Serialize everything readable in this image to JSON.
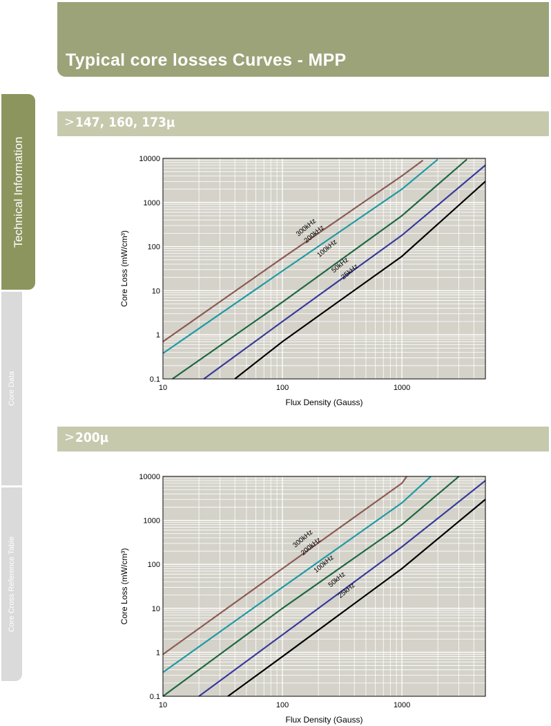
{
  "header": {
    "title": "Typical core losses Curves - MPP"
  },
  "side_tabs": [
    {
      "label": "Technical Information",
      "active": true
    },
    {
      "label": "Core Data",
      "active": false
    },
    {
      "label": "Core Cross Reference Table",
      "active": false
    }
  ],
  "sections": [
    {
      "marker": ">",
      "title": "147, 160, 173μ"
    },
    {
      "marker": ">",
      "title": "200μ"
    }
  ],
  "colors": {
    "header_bg": "#9ca379",
    "section_bg": "#c7c9ad",
    "plot_bg": "#d4d2c9",
    "grid": "#ffffff",
    "300kHz": "#8b5a55",
    "200kHz": "#1f9aa3",
    "100kHz": "#1f6842",
    "50kHz": "#363a9a",
    "25kHz": "#000000"
  },
  "chart_data": [
    {
      "type": "line",
      "title": "",
      "xlabel": "Flux Density (Gauss)",
      "ylabel": "Core Loss (mW/cm³)",
      "x_scale": "log",
      "y_scale": "log",
      "xlim": [
        10,
        5000
      ],
      "ylim": [
        0.1,
        10000
      ],
      "x_ticks": [
        "10",
        "100",
        "1000"
      ],
      "y_ticks": [
        "0.1",
        "1",
        "10",
        "100",
        "1000",
        "10000"
      ],
      "grid": true,
      "series": [
        {
          "name": "300kHz",
          "color": "#8b5a55",
          "x": [
            10,
            100,
            1000,
            1500
          ],
          "y": [
            0.7,
            55,
            4000,
            9000
          ]
        },
        {
          "name": "200kHz",
          "color": "#1f9aa3",
          "x": [
            10,
            100,
            1000,
            2000
          ],
          "y": [
            0.38,
            28,
            2000,
            9500
          ]
        },
        {
          "name": "100kHz",
          "color": "#1f6842",
          "x": [
            12,
            100,
            1000,
            3500
          ],
          "y": [
            0.1,
            5.5,
            500,
            9500
          ]
        },
        {
          "name": "50kHz",
          "color": "#363a9a",
          "x": [
            22,
            100,
            1000,
            5000
          ],
          "y": [
            0.1,
            2,
            180,
            7000
          ]
        },
        {
          "name": "25kHz",
          "color": "#000000",
          "x": [
            40,
            100,
            1000,
            5000
          ],
          "y": [
            0.1,
            0.7,
            60,
            3000
          ]
        }
      ]
    },
    {
      "type": "line",
      "title": "",
      "xlabel": "Flux Density (Gauss)",
      "ylabel": "Core Loss (mW/cm³)",
      "x_scale": "log",
      "y_scale": "log",
      "xlim": [
        10,
        5000
      ],
      "ylim": [
        0.1,
        10000
      ],
      "x_ticks": [
        "10",
        "100",
        "1000"
      ],
      "y_ticks": [
        "0.1",
        "1",
        "10",
        "100",
        "1000",
        "10000"
      ],
      "grid": true,
      "series": [
        {
          "name": "300kHz",
          "color": "#8b5a55",
          "x": [
            10,
            100,
            1000,
            1100
          ],
          "y": [
            0.9,
            80,
            7000,
            10000
          ]
        },
        {
          "name": "200kHz",
          "color": "#1f9aa3",
          "x": [
            10,
            100,
            1000,
            1750
          ],
          "y": [
            0.35,
            30,
            2500,
            10000
          ]
        },
        {
          "name": "100kHz",
          "color": "#1f6842",
          "x": [
            10,
            100,
            1000,
            3000
          ],
          "y": [
            0.1,
            10,
            800,
            10000
          ]
        },
        {
          "name": "50kHz",
          "color": "#363a9a",
          "x": [
            20,
            100,
            1000,
            5000
          ],
          "y": [
            0.1,
            2.5,
            250,
            8000
          ]
        },
        {
          "name": "25kHz",
          "color": "#000000",
          "x": [
            35,
            100,
            1000,
            5000
          ],
          "y": [
            0.1,
            0.8,
            80,
            3000
          ]
        }
      ]
    }
  ]
}
